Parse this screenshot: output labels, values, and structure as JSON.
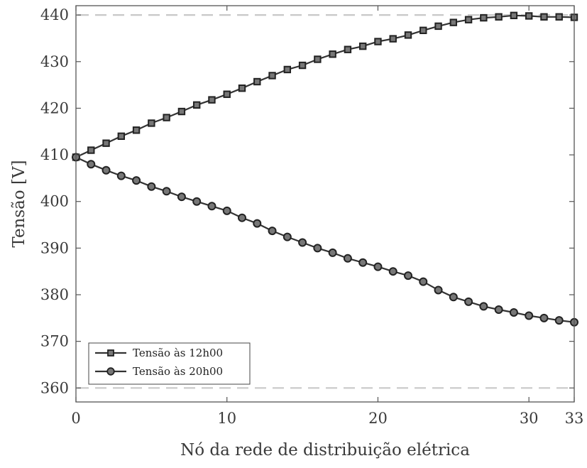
{
  "chart_data": {
    "type": "line",
    "title": "",
    "xlabel": "Nó da rede de distribuição elétrica",
    "ylabel": "Tensão [V]",
    "xlim": [
      0,
      33
    ],
    "ylim": [
      357,
      442
    ],
    "xticks": [
      0,
      10,
      20,
      30,
      33
    ],
    "xtick_labels": [
      "0",
      "10",
      "20",
      "30",
      "33"
    ],
    "yticks": [
      360,
      370,
      380,
      390,
      400,
      410,
      420,
      430,
      440
    ],
    "ytick_labels": [
      "360",
      "370",
      "380",
      "390",
      "400",
      "410",
      "420",
      "430",
      "440"
    ],
    "grid": false,
    "legend_position": "bottom-left",
    "reference_lines": [
      {
        "y": 440,
        "style": "dashed",
        "color": "#c8c8c8"
      },
      {
        "y": 360,
        "style": "dashed",
        "color": "#c8c8c8"
      }
    ],
    "x": [
      0,
      1,
      2,
      3,
      4,
      5,
      6,
      7,
      8,
      9,
      10,
      11,
      12,
      13,
      14,
      15,
      16,
      17,
      18,
      19,
      20,
      21,
      22,
      23,
      24,
      25,
      26,
      27,
      28,
      29,
      30,
      31,
      32,
      33
    ],
    "series": [
      {
        "name": "Tensão às 12h00",
        "marker": "square",
        "color": "#333333",
        "values": [
          409.5,
          411.0,
          412.5,
          414.0,
          415.3,
          416.8,
          418.0,
          419.3,
          420.7,
          421.8,
          423.0,
          424.3,
          425.7,
          427.0,
          428.3,
          429.2,
          430.5,
          431.6,
          432.6,
          433.3,
          434.3,
          434.9,
          435.7,
          436.7,
          437.6,
          438.4,
          439.0,
          439.4,
          439.6,
          439.9,
          439.8,
          439.6,
          439.6,
          439.5
        ]
      },
      {
        "name": "Tensão às 20h00",
        "marker": "circle",
        "color": "#333333",
        "values": [
          409.5,
          408.0,
          406.7,
          405.5,
          404.5,
          403.2,
          402.2,
          401.0,
          400.0,
          399.0,
          398.0,
          396.5,
          395.3,
          393.7,
          392.4,
          391.2,
          390.0,
          389.0,
          387.8,
          386.9,
          386.0,
          385.0,
          384.1,
          382.8,
          381.0,
          379.5,
          378.5,
          377.5,
          376.8,
          376.2,
          375.5,
          375.0,
          374.5,
          374.1
        ]
      }
    ]
  }
}
